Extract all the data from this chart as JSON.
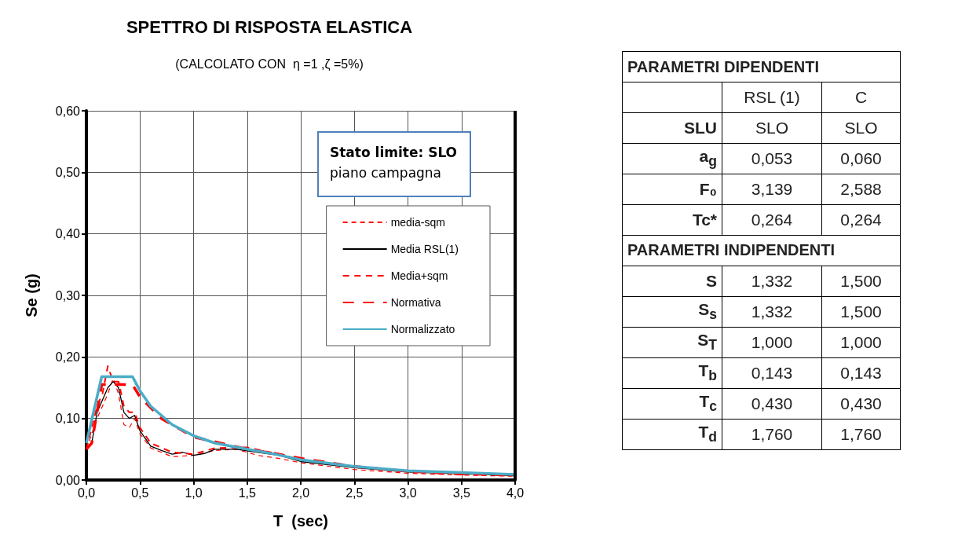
{
  "chart_data": [
    {
      "type": "line",
      "title": "SPETTRO DI RISPOSTA ELASTICA",
      "subtitle": "(CALCOLATO CON  η =1 ,ζ =5%)",
      "xlabel": "T  (sec)",
      "ylabel": "Se (g)",
      "annotations": [
        "Stato limite: SLO",
        "piano campagna"
      ],
      "xlim": [
        0,
        4
      ],
      "ylim": [
        0,
        0.6
      ],
      "xticks": [
        {
          "value": 0,
          "label": "0,0"
        },
        {
          "value": 0.5,
          "label": "0,5"
        },
        {
          "value": 1,
          "label": "1,0"
        },
        {
          "value": 1.5,
          "label": "1,5"
        },
        {
          "value": 2,
          "label": "2,0"
        },
        {
          "value": 2.5,
          "label": "2,5"
        },
        {
          "value": 3,
          "label": "3,0"
        },
        {
          "value": 3.5,
          "label": "3,5"
        },
        {
          "value": 4,
          "label": "4,0"
        }
      ],
      "yticks": [
        {
          "value": 0,
          "label": "0,00"
        },
        {
          "value": 0.1,
          "label": "0,10"
        },
        {
          "value": 0.2,
          "label": "0,20"
        },
        {
          "value": 0.3,
          "label": "0,30"
        },
        {
          "value": 0.4,
          "label": "0,40"
        },
        {
          "value": 0.5,
          "label": "0,50"
        },
        {
          "value": 0.6,
          "label": "0,60"
        }
      ],
      "grid": true,
      "legend": "right",
      "series": [
        {
          "name": "media-sqm",
          "color": "#ff0000",
          "line_style": "dashed",
          "x": [
            0,
            0.1,
            0.15,
            0.2,
            0.25,
            0.3,
            0.35,
            0.4,
            0.45,
            0.5,
            0.6,
            0.8,
            1.0,
            1.2,
            1.4,
            1.6,
            1.8,
            2.0,
            2.5,
            3.0,
            3.5,
            4.0
          ],
          "values": [
            0.05,
            0.1,
            0.12,
            0.14,
            0.165,
            0.14,
            0.09,
            0.085,
            0.1,
            0.075,
            0.052,
            0.038,
            0.04,
            0.048,
            0.05,
            0.04,
            0.035,
            0.028,
            0.017,
            0.011,
            0.008,
            0.006
          ]
        },
        {
          "name": "Media RSL(1)",
          "color": "#000000",
          "line_style": "solid",
          "x": [
            0,
            0.05,
            0.1,
            0.15,
            0.2,
            0.25,
            0.3,
            0.35,
            0.4,
            0.45,
            0.5,
            0.6,
            0.7,
            0.8,
            0.9,
            1.0,
            1.1,
            1.2,
            1.4,
            1.6,
            1.8,
            2.0,
            2.5,
            3.0,
            3.5,
            4.0
          ],
          "values": [
            0.05,
            0.06,
            0.11,
            0.13,
            0.15,
            0.16,
            0.15,
            0.11,
            0.1,
            0.105,
            0.08,
            0.055,
            0.048,
            0.042,
            0.045,
            0.04,
            0.043,
            0.05,
            0.05,
            0.045,
            0.04,
            0.03,
            0.02,
            0.013,
            0.01,
            0.007
          ]
        },
        {
          "name": "Media+sqm",
          "color": "#ff0000",
          "line_style": "dashed",
          "x": [
            0,
            0.1,
            0.15,
            0.2,
            0.25,
            0.3,
            0.35,
            0.4,
            0.45,
            0.5,
            0.6,
            0.8,
            1.0,
            1.2,
            1.5,
            1.8,
            2.0,
            2.5,
            3.0,
            3.5,
            4.0
          ],
          "values": [
            0.05,
            0.12,
            0.14,
            0.185,
            0.16,
            0.16,
            0.12,
            0.11,
            0.11,
            0.085,
            0.06,
            0.045,
            0.042,
            0.052,
            0.053,
            0.042,
            0.033,
            0.022,
            0.014,
            0.011,
            0.008
          ]
        },
        {
          "name": "Normativa",
          "color": "#ff0000",
          "line_style": "dashed",
          "x": [
            0,
            0.05,
            0.143,
            0.43,
            0.5,
            0.7,
            1.0,
            1.5,
            1.76,
            2.0,
            2.5,
            3.0,
            3.5,
            4.0
          ],
          "values": [
            0.05,
            0.06,
            0.155,
            0.155,
            0.135,
            0.1,
            0.07,
            0.05,
            0.043,
            0.035,
            0.022,
            0.014,
            0.01,
            0.008
          ]
        },
        {
          "name": "Normalizzato",
          "color": "#4bacc6",
          "line_style": "solid",
          "x": [
            0,
            0.143,
            0.43,
            0.5,
            0.6,
            0.8,
            1.0,
            1.2,
            1.5,
            1.76,
            2.0,
            2.5,
            3.0,
            3.5,
            4.0
          ],
          "values": [
            0.06,
            0.168,
            0.168,
            0.145,
            0.12,
            0.09,
            0.072,
            0.06,
            0.05,
            0.042,
            0.033,
            0.022,
            0.015,
            0.012,
            0.009
          ]
        }
      ]
    },
    {
      "type": "other",
      "title": "PARAMETRI DIPENDENTI",
      "annotations": [
        "RSL (1)",
        "C",
        "SLU",
        "SLO",
        "SLO",
        "a$_{g}$",
        "0,053",
        "0,060",
        "F₀",
        "3,139",
        "2,588",
        "Tc*",
        "0,264",
        "0,264"
      ]
    },
    {
      "type": "other",
      "title": "PARAMETRI INDIPENDENTI",
      "annotations": [
        "S",
        "1,332",
        "1,500",
        "S$_{s}$",
        "1,332",
        "1,500",
        "S$_{T}$",
        "1,000",
        "1,000",
        "T$_{b}$",
        "0,143",
        "0,143",
        "T$_{c}$",
        "0,430",
        "0,430",
        "T$_{d}$",
        "1,760",
        "1,760"
      ]
    }
  ]
}
